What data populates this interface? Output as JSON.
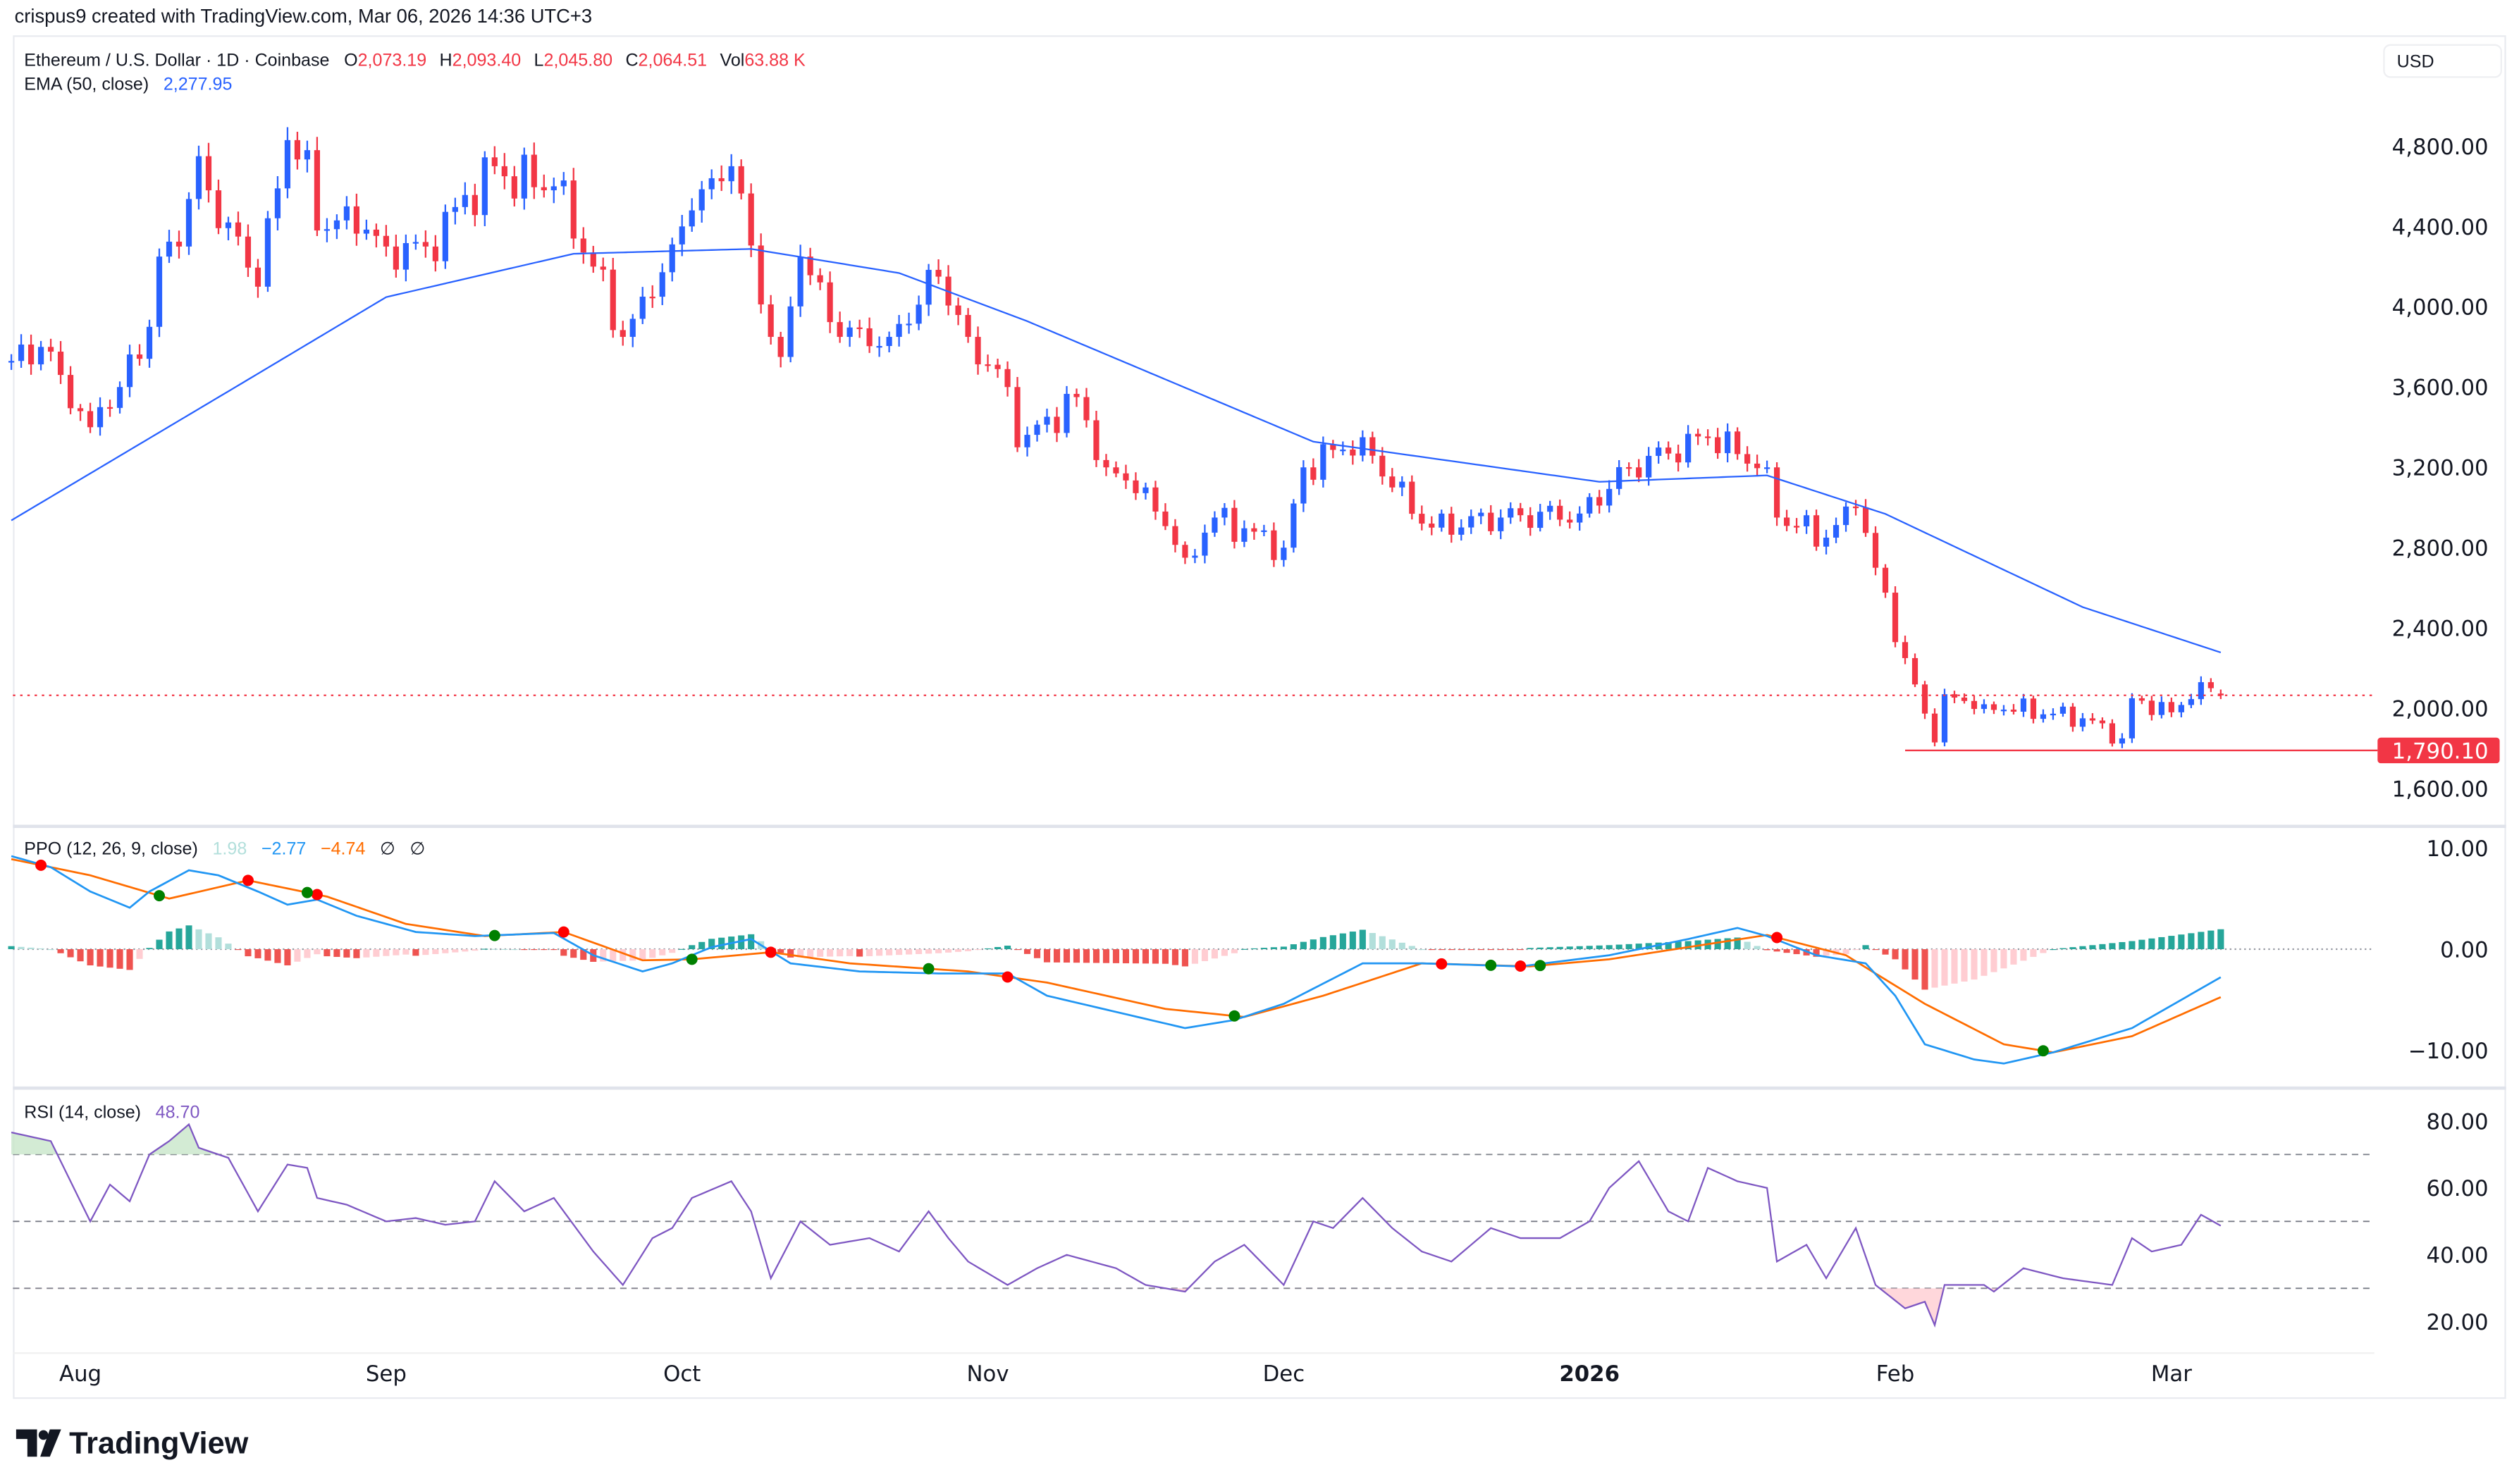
{
  "attribution": "crispus9 created with TradingView.com, Mar 06, 2026 14:36 UTC+3",
  "brand": "TradingView",
  "currency_button": "USD",
  "legend": {
    "symbol": "Ethereum / U.S. Dollar · 1D · Coinbase",
    "o_label": "O",
    "o": "2,073.19",
    "h_label": "H",
    "h": "2,093.40",
    "l_label": "L",
    "l": "2,045.80",
    "c_label": "C",
    "c": "2,064.51",
    "vol_label": "Vol",
    "vol": "63.88 K",
    "ema_label": "EMA (50, close)",
    "ema": "2,277.95",
    "ppo_label": "PPO (12, 26, 9, close)",
    "ppo_hist": "1.98",
    "ppo_line": "−2.77",
    "ppo_signal": "−4.74",
    "ppo_na1": "∅",
    "ppo_na2": "∅",
    "rsi_label": "RSI (14, close)",
    "rsi": "48.70"
  },
  "colors": {
    "up": "#2962ff",
    "down": "#f23645",
    "ema": "#2962ff",
    "ppo_line": "#2196f3",
    "ppo_signal": "#ff6d00",
    "rsi": "#7e57c2",
    "hist_up_strong": "#26a69a",
    "hist_up_weak": "#b2dfdb",
    "hist_down_strong": "#ef5350",
    "hist_down_weak": "#ffcdd2",
    "cross_bear": "#ff0000",
    "cross_bull": "#008000"
  },
  "chart_data": [
    {
      "type": "candlestick",
      "title": "Ethereum / U.S. Dollar · 1D · Coinbase",
      "y_ticks": [
        "4,800.00",
        "4,400.00",
        "4,000.00",
        "3,600.00",
        "3,200.00",
        "2,800.00",
        "2,400.00",
        "2,000.00",
        "1,600.00"
      ],
      "ylim": [
        1560,
        5000
      ],
      "x_ticks": [
        {
          "date": "2025-08-01",
          "label": "Aug"
        },
        {
          "date": "2025-09-01",
          "label": "Sep"
        },
        {
          "date": "2025-10-01",
          "label": "Oct"
        },
        {
          "date": "2025-11-01",
          "label": "Nov"
        },
        {
          "date": "2025-12-01",
          "label": "Dec"
        },
        {
          "date": "2026-01-01",
          "label": "2026",
          "bold": true
        },
        {
          "date": "2026-02-01",
          "label": "Feb"
        },
        {
          "date": "2026-03-01",
          "label": "Mar"
        }
      ],
      "close_keypoints": [
        [
          "2025-07-25",
          3730
        ],
        [
          "2025-07-28",
          3800
        ],
        [
          "2025-08-02",
          3400
        ],
        [
          "2025-08-03",
          3500
        ],
        [
          "2025-08-05",
          3600
        ],
        [
          "2025-08-08",
          3900
        ],
        [
          "2025-08-09",
          4250
        ],
        [
          "2025-08-11",
          4300
        ],
        [
          "2025-08-13",
          4750
        ],
        [
          "2025-08-14",
          4580
        ],
        [
          "2025-08-16",
          4420
        ],
        [
          "2025-08-19",
          4100
        ],
        [
          "2025-08-22",
          4830
        ],
        [
          "2025-08-24",
          4780
        ],
        [
          "2025-08-25",
          4380
        ],
        [
          "2025-08-28",
          4500
        ],
        [
          "2025-09-01",
          4300
        ],
        [
          "2025-09-05",
          4300
        ],
        [
          "2025-09-12",
          4700
        ],
        [
          "2025-09-13",
          4650
        ],
        [
          "2025-09-18",
          4600
        ],
        [
          "2025-09-22",
          4200
        ],
        [
          "2025-09-25",
          3850
        ],
        [
          "2025-09-28",
          4050
        ],
        [
          "2025-10-02",
          4480
        ],
        [
          "2025-10-06",
          4700
        ],
        [
          "2025-10-10",
          3850
        ],
        [
          "2025-10-11",
          3750
        ],
        [
          "2025-10-13",
          4250
        ],
        [
          "2025-10-17",
          3850
        ],
        [
          "2025-10-22",
          3850
        ],
        [
          "2025-10-27",
          4150
        ],
        [
          "2025-10-30",
          3850
        ],
        [
          "2025-11-03",
          3600
        ],
        [
          "2025-11-04",
          3300
        ],
        [
          "2025-11-10",
          3550
        ],
        [
          "2025-11-13",
          3200
        ],
        [
          "2025-11-17",
          3100
        ],
        [
          "2025-11-21",
          2750
        ],
        [
          "2025-11-24",
          2950
        ],
        [
          "2025-12-01",
          2800
        ],
        [
          "2025-12-03",
          3200
        ],
        [
          "2025-12-09",
          3350
        ],
        [
          "2025-12-12",
          3100
        ],
        [
          "2025-12-16",
          2900
        ],
        [
          "2025-12-23",
          2950
        ],
        [
          "2025-12-31",
          2970
        ],
        [
          "2026-01-05",
          3200
        ],
        [
          "2026-01-13",
          3350
        ],
        [
          "2026-01-19",
          3200
        ],
        [
          "2026-01-20",
          2950
        ],
        [
          "2026-01-25",
          2850
        ],
        [
          "2026-01-28",
          3000
        ],
        [
          "2026-01-30",
          2700
        ],
        [
          "2026-02-02",
          2250
        ],
        [
          "2026-02-05",
          1830
        ],
        [
          "2026-02-06",
          2070
        ],
        [
          "2026-02-10",
          2020
        ],
        [
          "2026-02-20",
          1950
        ],
        [
          "2026-02-24",
          1850
        ],
        [
          "2026-02-25",
          2050
        ],
        [
          "2026-03-01",
          1980
        ],
        [
          "2026-03-04",
          2130
        ],
        [
          "2026-03-06",
          2064.51
        ]
      ],
      "last_candle": {
        "open": 2073.19,
        "high": 2093.4,
        "low": 2045.8,
        "close": 2064.51
      },
      "ema50_keypoints": [
        [
          "2025-07-25",
          2936
        ],
        [
          "2025-08-17",
          3608
        ],
        [
          "2025-09-01",
          4048
        ],
        [
          "2025-09-20",
          4264
        ],
        [
          "2025-10-08",
          4288
        ],
        [
          "2025-10-23",
          4168
        ],
        [
          "2025-11-05",
          3928
        ],
        [
          "2025-12-04",
          3328
        ],
        [
          "2026-01-02",
          3128
        ],
        [
          "2026-01-19",
          3160
        ],
        [
          "2026-01-31",
          2968
        ],
        [
          "2026-02-20",
          2504
        ],
        [
          "2026-03-06",
          2277.95
        ]
      ],
      "current_price_line": 2064.51,
      "horizontal_line": {
        "value": 1790.1,
        "label": "1,790.10",
        "from": "2026-02-02"
      }
    },
    {
      "type": "line",
      "title": "PPO (12, 26, 9, close)",
      "y_ticks": [
        "10.00",
        "0.00",
        "−10.00"
      ],
      "ylim": [
        -14,
        11
      ],
      "ppo_keypoints": [
        [
          "2025-07-25",
          9.2
        ],
        [
          "2025-07-29",
          8.1
        ],
        [
          "2025-08-02",
          5.7
        ],
        [
          "2025-08-06",
          4.1
        ],
        [
          "2025-08-08",
          5.7
        ],
        [
          "2025-08-12",
          7.8
        ],
        [
          "2025-08-15",
          7.3
        ],
        [
          "2025-08-19",
          5.7
        ],
        [
          "2025-08-22",
          4.4
        ],
        [
          "2025-08-25",
          4.9
        ],
        [
          "2025-08-29",
          3.3
        ],
        [
          "2025-09-04",
          1.7
        ],
        [
          "2025-09-10",
          1.3
        ],
        [
          "2025-09-18",
          1.6
        ],
        [
          "2025-09-22",
          -0.6
        ],
        [
          "2025-09-27",
          -2.2
        ],
        [
          "2025-09-30",
          -1.4
        ],
        [
          "2025-10-04",
          0.2
        ],
        [
          "2025-10-08",
          1.0
        ],
        [
          "2025-10-12",
          -1.4
        ],
        [
          "2025-10-19",
          -2.2
        ],
        [
          "2025-10-27",
          -2.4
        ],
        [
          "2025-11-03",
          -2.4
        ],
        [
          "2025-11-07",
          -4.6
        ],
        [
          "2025-11-14",
          -6.2
        ],
        [
          "2025-11-21",
          -7.8
        ],
        [
          "2025-11-26",
          -7.0
        ],
        [
          "2025-12-01",
          -5.4
        ],
        [
          "2025-12-09",
          -1.4
        ],
        [
          "2025-12-15",
          -1.4
        ],
        [
          "2025-12-25",
          -1.7
        ],
        [
          "2026-01-03",
          -0.6
        ],
        [
          "2026-01-11",
          1.0
        ],
        [
          "2026-01-16",
          2.1
        ],
        [
          "2026-01-19",
          1.3
        ],
        [
          "2026-01-24",
          -0.6
        ],
        [
          "2026-01-29",
          -1.4
        ],
        [
          "2026-02-01",
          -4.6
        ],
        [
          "2026-02-04",
          -9.4
        ],
        [
          "2026-02-09",
          -10.9
        ],
        [
          "2026-02-12",
          -11.3
        ],
        [
          "2026-02-17",
          -10.2
        ],
        [
          "2026-02-25",
          -7.8
        ],
        [
          "2026-03-06",
          -2.77
        ]
      ],
      "signal_keypoints": [
        [
          "2025-07-25",
          8.9
        ],
        [
          "2025-08-02",
          7.3
        ],
        [
          "2025-08-10",
          5.0
        ],
        [
          "2025-08-18",
          6.8
        ],
        [
          "2025-08-26",
          5.2
        ],
        [
          "2025-09-03",
          2.5
        ],
        [
          "2025-09-11",
          1.3
        ],
        [
          "2025-09-19",
          1.7
        ],
        [
          "2025-09-27",
          -1.1
        ],
        [
          "2025-10-02",
          -1.0
        ],
        [
          "2025-10-10",
          -0.3
        ],
        [
          "2025-10-18",
          -1.4
        ],
        [
          "2025-10-30",
          -2.2
        ],
        [
          "2025-11-07",
          -3.3
        ],
        [
          "2025-11-19",
          -5.9
        ],
        [
          "2025-11-27",
          -6.7
        ],
        [
          "2025-12-05",
          -4.6
        ],
        [
          "2025-12-15",
          -1.4
        ],
        [
          "2025-12-26",
          -1.7
        ],
        [
          "2026-01-03",
          -1.0
        ],
        [
          "2026-01-11",
          0.2
        ],
        [
          "2026-01-19",
          1.4
        ],
        [
          "2026-01-27",
          -0.6
        ],
        [
          "2026-02-04",
          -5.4
        ],
        [
          "2026-02-12",
          -9.4
        ],
        [
          "2026-02-17",
          -10.2
        ],
        [
          "2026-02-25",
          -8.6
        ],
        [
          "2026-03-06",
          -4.74
        ]
      ],
      "bearish_crosses": [
        "2025-07-28",
        "2025-08-18",
        "2025-08-25",
        "2025-09-19",
        "2025-10-10",
        "2025-11-03",
        "2025-12-17",
        "2025-12-25",
        "2026-01-20"
      ],
      "bullish_crosses": [
        "2025-08-09",
        "2025-08-24",
        "2025-09-12",
        "2025-10-02",
        "2025-10-26",
        "2025-11-26",
        "2025-12-22",
        "2025-12-27",
        "2026-02-16"
      ]
    },
    {
      "type": "line",
      "title": "RSI (14, close)",
      "y_ticks": [
        "80.00",
        "60.00",
        "40.00",
        "20.00"
      ],
      "bands": [
        70,
        50,
        30
      ],
      "ylim": [
        12,
        86
      ],
      "rsi_keypoints": [
        [
          "2025-07-25",
          76.6
        ],
        [
          "2025-07-29",
          74
        ],
        [
          "2025-08-02",
          50
        ],
        [
          "2025-08-04",
          61
        ],
        [
          "2025-08-06",
          56
        ],
        [
          "2025-08-08",
          70
        ],
        [
          "2025-08-10",
          74
        ],
        [
          "2025-08-12",
          79
        ],
        [
          "2025-08-13",
          72
        ],
        [
          "2025-08-16",
          69
        ],
        [
          "2025-08-19",
          53
        ],
        [
          "2025-08-22",
          67
        ],
        [
          "2025-08-24",
          66
        ],
        [
          "2025-08-25",
          57
        ],
        [
          "2025-08-28",
          55
        ],
        [
          "2025-09-01",
          50
        ],
        [
          "2025-09-04",
          51
        ],
        [
          "2025-09-07",
          49
        ],
        [
          "2025-09-10",
          50
        ],
        [
          "2025-09-12",
          62
        ],
        [
          "2025-09-15",
          53
        ],
        [
          "2025-09-18",
          57
        ],
        [
          "2025-09-22",
          41
        ],
        [
          "2025-09-25",
          31
        ],
        [
          "2025-09-28",
          45
        ],
        [
          "2025-09-30",
          48
        ],
        [
          "2025-10-02",
          57
        ],
        [
          "2025-10-06",
          62
        ],
        [
          "2025-10-08",
          53
        ],
        [
          "2025-10-10",
          33
        ],
        [
          "2025-10-13",
          50
        ],
        [
          "2025-10-16",
          43
        ],
        [
          "2025-10-20",
          45
        ],
        [
          "2025-10-23",
          41
        ],
        [
          "2025-10-26",
          53
        ],
        [
          "2025-10-28",
          45
        ],
        [
          "2025-10-30",
          38
        ],
        [
          "2025-11-03",
          31
        ],
        [
          "2025-11-06",
          36
        ],
        [
          "2025-11-09",
          40
        ],
        [
          "2025-11-14",
          36
        ],
        [
          "2025-11-17",
          31
        ],
        [
          "2025-11-21",
          29
        ],
        [
          "2025-11-24",
          38
        ],
        [
          "2025-11-27",
          43
        ],
        [
          "2025-12-01",
          31
        ],
        [
          "2025-12-04",
          50
        ],
        [
          "2025-12-06",
          48
        ],
        [
          "2025-12-09",
          57
        ],
        [
          "2025-12-12",
          48
        ],
        [
          "2025-12-15",
          41
        ],
        [
          "2025-12-18",
          38
        ],
        [
          "2025-12-22",
          48
        ],
        [
          "2025-12-25",
          45
        ],
        [
          "2025-12-29",
          45
        ],
        [
          "2026-01-01",
          50
        ],
        [
          "2026-01-03",
          60
        ],
        [
          "2026-01-06",
          68
        ],
        [
          "2026-01-09",
          53
        ],
        [
          "2026-01-11",
          50
        ],
        [
          "2026-01-13",
          66
        ],
        [
          "2026-01-16",
          62
        ],
        [
          "2026-01-19",
          60
        ],
        [
          "2026-01-20",
          38
        ],
        [
          "2026-01-23",
          43
        ],
        [
          "2026-01-25",
          33
        ],
        [
          "2026-01-28",
          48
        ],
        [
          "2026-01-30",
          31
        ],
        [
          "2026-02-02",
          24
        ],
        [
          "2026-02-04",
          26
        ],
        [
          "2026-02-05",
          19
        ],
        [
          "2026-02-06",
          31
        ],
        [
          "2026-02-10",
          31
        ],
        [
          "2026-02-11",
          29
        ],
        [
          "2026-02-14",
          36
        ],
        [
          "2026-02-18",
          33
        ],
        [
          "2026-02-23",
          31
        ],
        [
          "2026-02-25",
          45
        ],
        [
          "2026-02-27",
          41
        ],
        [
          "2026-03-02",
          43
        ],
        [
          "2026-03-04",
          52
        ],
        [
          "2026-03-06",
          48.7
        ]
      ]
    }
  ]
}
